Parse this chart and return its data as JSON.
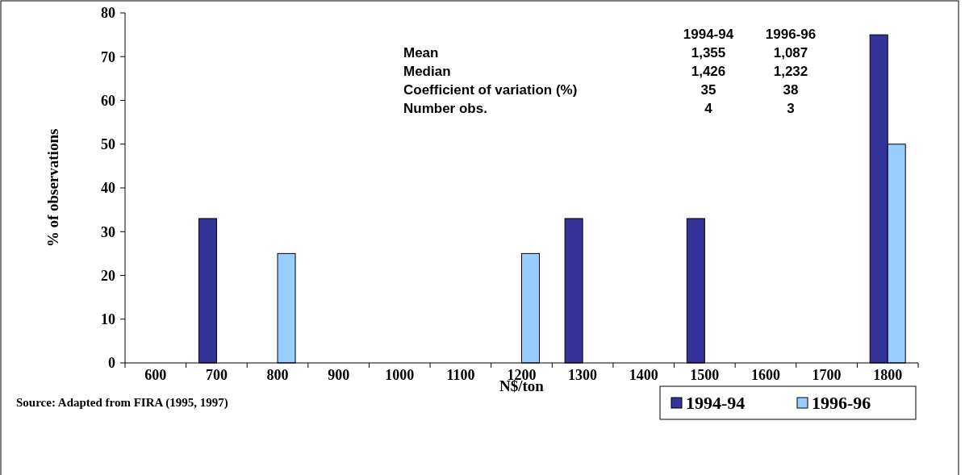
{
  "chart_data": {
    "type": "bar",
    "xlabel": "N$/ton",
    "ylabel": "% of observations",
    "categories": [
      "600",
      "700",
      "800",
      "900",
      "1000",
      "1100",
      "1200",
      "1300",
      "1400",
      "1500",
      "1600",
      "1700",
      "1800"
    ],
    "series": [
      {
        "name": "1994-94",
        "color": "#333399",
        "values": [
          null,
          33,
          null,
          null,
          null,
          null,
          null,
          33,
          null,
          33,
          null,
          null,
          75
        ]
      },
      {
        "name": "1996-96",
        "color": "#99ccff",
        "values": [
          null,
          null,
          25,
          null,
          null,
          null,
          25,
          null,
          null,
          null,
          null,
          null,
          50
        ]
      }
    ],
    "ylim": [
      0,
      80
    ],
    "yticks": [
      0,
      10,
      20,
      30,
      40,
      50,
      60,
      70,
      80
    ],
    "grid": false,
    "legend": "bottom right",
    "annotations": [
      "1994-94",
      "1996-96",
      "Mean",
      "1,355",
      "1,087",
      "Median",
      "1,426",
      "1,232",
      "Coefficient of variation (%)",
      "35",
      "38",
      "Number obs.",
      "4",
      "3",
      "Source: Adapted from FIRA (1995, 1997)"
    ]
  }
}
